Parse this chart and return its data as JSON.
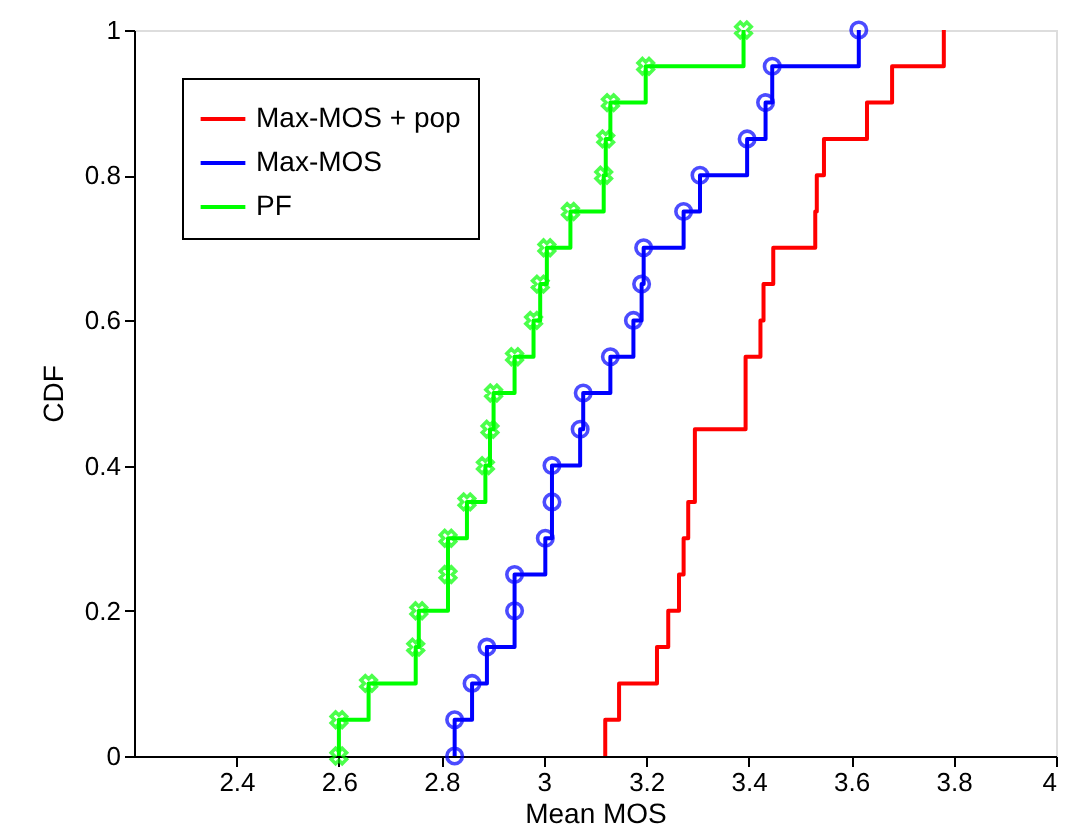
{
  "chart_data": {
    "type": "step",
    "xlabel": "Mean MOS",
    "ylabel": "CDF",
    "xlim": [
      2.2,
      4
    ],
    "ylim": [
      0,
      1
    ],
    "xticks": [
      2.4,
      2.6,
      2.8,
      3,
      3.2,
      3.4,
      3.6,
      3.8,
      4
    ],
    "yticks": [
      0,
      0.2,
      0.4,
      0.6,
      0.8,
      1
    ],
    "grid": false,
    "legend": "top left",
    "line_style": "solid",
    "series": [
      {
        "name": "Max-MOS + pop",
        "color": "#ff0000",
        "marker": "none",
        "x": [
          3.12,
          3.12,
          3.147,
          3.221,
          3.243,
          3.264,
          3.273,
          3.282,
          3.295,
          3.295,
          3.394,
          3.394,
          3.423,
          3.429,
          3.448,
          3.53,
          3.533,
          3.547,
          3.631,
          3.68,
          3.781
        ],
        "values": [
          0,
          0.05,
          0.1,
          0.15,
          0.2,
          0.25,
          0.3,
          0.35,
          0.4,
          0.45,
          0.5,
          0.55,
          0.6,
          0.65,
          0.7,
          0.75,
          0.8,
          0.85,
          0.9,
          0.95,
          1
        ]
      },
      {
        "name": "Max-MOS",
        "color": "#0000ff",
        "marker": "circle",
        "x": [
          2.826,
          2.826,
          2.86,
          2.889,
          2.943,
          2.943,
          3.003,
          3.016,
          3.016,
          3.071,
          3.077,
          3.13,
          3.175,
          3.191,
          3.195,
          3.273,
          3.305,
          3.397,
          3.433,
          3.446,
          3.615
        ],
        "values": [
          0,
          0.05,
          0.1,
          0.15,
          0.2,
          0.25,
          0.3,
          0.35,
          0.4,
          0.45,
          0.5,
          0.55,
          0.6,
          0.65,
          0.7,
          0.75,
          0.8,
          0.85,
          0.9,
          0.95,
          1
        ]
      },
      {
        "name": "PF",
        "color": "#00ff00",
        "marker": "cross",
        "x": [
          2.6,
          2.6,
          2.658,
          2.75,
          2.756,
          2.813,
          2.813,
          2.85,
          2.886,
          2.895,
          2.902,
          2.943,
          2.98,
          2.993,
          3.006,
          3.052,
          3.117,
          3.121,
          3.13,
          3.199,
          3.39
        ],
        "values": [
          0,
          0.05,
          0.1,
          0.15,
          0.2,
          0.25,
          0.3,
          0.35,
          0.4,
          0.45,
          0.5,
          0.55,
          0.6,
          0.65,
          0.7,
          0.75,
          0.8,
          0.85,
          0.9,
          0.95,
          1
        ]
      }
    ]
  }
}
